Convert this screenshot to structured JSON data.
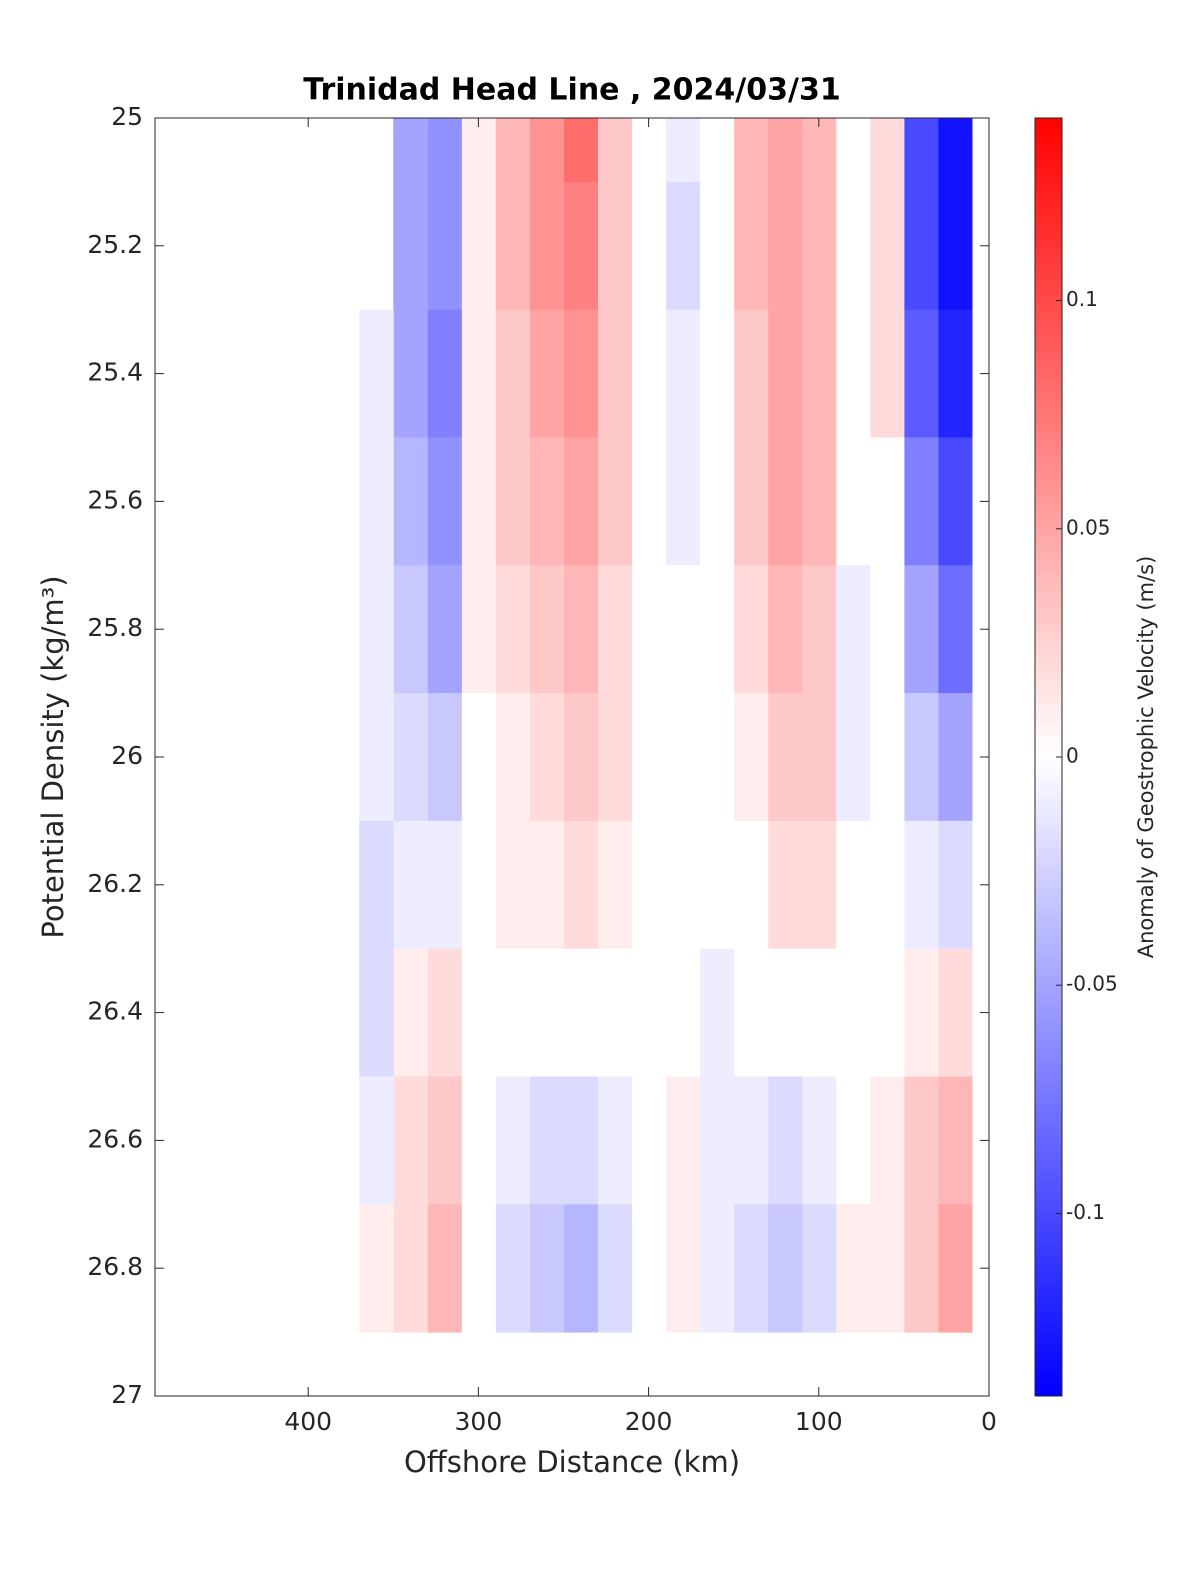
{
  "chart_data": {
    "type": "contourf",
    "title": "Trinidad Head Line , 2024/03/31",
    "xlabel": "Offshore Distance (km)",
    "ylabel": "Potential Density (kg/m³)",
    "colorbar_label": "Anomaly of Geostrophic Velocity (m/s)",
    "xlim": [
      490,
      0
    ],
    "xticks": [
      400,
      300,
      200,
      100,
      0
    ],
    "ylim": [
      27,
      25
    ],
    "yticks": [
      25,
      25.2,
      25.4,
      25.6,
      25.8,
      26,
      26.2,
      26.4,
      26.6,
      26.8,
      27
    ],
    "clim": [
      -0.14,
      0.14
    ],
    "cticks": [
      0.1,
      0.05,
      0,
      -0.05,
      -0.1
    ],
    "colormap": [
      "#0000ff",
      "#ffffff",
      "#ff0000"
    ],
    "x": [
      20,
      40,
      60,
      80,
      100,
      120,
      140,
      160,
      180,
      200,
      220,
      240,
      260,
      280,
      300,
      320,
      340,
      360
    ],
    "y": [
      25.0,
      25.2,
      25.4,
      25.6,
      25.8,
      26.0,
      26.2,
      26.4,
      26.6,
      26.8
    ],
    "z": [
      [
        -0.13,
        -0.1,
        0.02,
        0,
        0.04,
        0.05,
        0.04,
        0,
        -0.01,
        0,
        0.03,
        0.08,
        0.06,
        0.04,
        0.01,
        -0.06,
        -0.05,
        null
      ],
      [
        -0.13,
        -0.1,
        0.02,
        0,
        0.04,
        0.05,
        0.04,
        0,
        -0.02,
        0,
        0.03,
        0.07,
        0.06,
        0.04,
        0.01,
        -0.06,
        -0.05,
        null
      ],
      [
        -0.12,
        -0.09,
        0.02,
        0,
        0.04,
        0.05,
        0.03,
        0,
        -0.01,
        0,
        0.03,
        0.06,
        0.05,
        0.03,
        0.01,
        -0.07,
        -0.05,
        -0.01
      ],
      [
        -0.1,
        -0.07,
        0,
        0,
        0.04,
        0.05,
        0.03,
        0,
        -0.01,
        0,
        0.03,
        0.05,
        0.04,
        0.03,
        0.01,
        -0.06,
        -0.04,
        -0.01
      ],
      [
        -0.08,
        -0.05,
        0,
        -0.01,
        0.03,
        0.04,
        0.02,
        0,
        0,
        0,
        0.02,
        0.04,
        0.03,
        0.02,
        0.01,
        -0.05,
        -0.03,
        -0.01
      ],
      [
        -0.05,
        -0.03,
        0,
        -0.01,
        0.03,
        0.03,
        0.01,
        0,
        0,
        0,
        0.02,
        0.03,
        0.02,
        0.01,
        0,
        -0.03,
        -0.02,
        -0.01
      ],
      [
        -0.02,
        -0.01,
        0,
        0,
        0.02,
        0.02,
        0,
        0,
        0,
        0,
        0.01,
        0.02,
        0.01,
        0.01,
        0,
        -0.01,
        -0.01,
        -0.02
      ],
      [
        0.02,
        0.01,
        0,
        0,
        0,
        0,
        0,
        -0.01,
        0,
        0,
        0,
        0,
        0,
        0,
        0,
        0.02,
        0.01,
        -0.02
      ],
      [
        0.04,
        0.03,
        0.01,
        0,
        -0.01,
        -0.02,
        -0.01,
        -0.01,
        0.01,
        0,
        -0.01,
        -0.02,
        -0.02,
        -0.01,
        0,
        0.03,
        0.02,
        -0.01
      ],
      [
        0.05,
        0.03,
        0.01,
        0.01,
        -0.02,
        -0.03,
        -0.02,
        -0.01,
        0.01,
        0,
        -0.02,
        -0.04,
        -0.03,
        -0.02,
        0,
        0.04,
        0.02,
        0.01
      ]
    ]
  }
}
